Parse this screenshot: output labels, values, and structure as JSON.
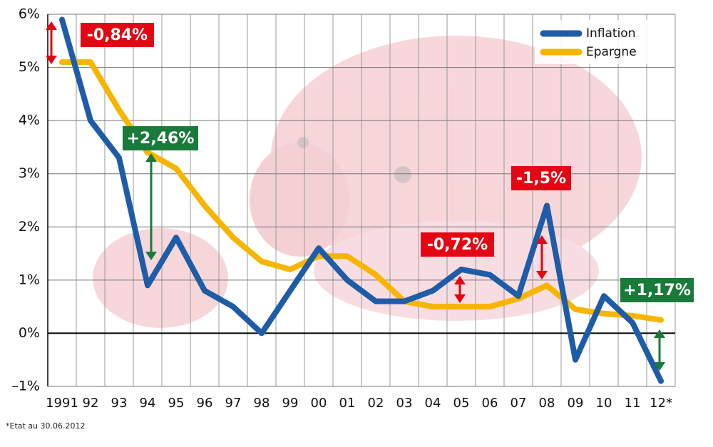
{
  "chart_data": {
    "type": "line",
    "categories": [
      "1991",
      "92",
      "93",
      "94",
      "95",
      "96",
      "97",
      "98",
      "99",
      "00",
      "01",
      "02",
      "03",
      "04",
      "05",
      "06",
      "07",
      "08",
      "09",
      "10",
      "11",
      "12*"
    ],
    "series": [
      {
        "name": "Inflation",
        "color": "#1f5ca8",
        "values": [
          5.9,
          4.0,
          3.3,
          0.9,
          1.8,
          0.8,
          0.5,
          0.0,
          0.8,
          1.6,
          1.0,
          0.6,
          0.6,
          0.8,
          1.2,
          1.1,
          0.7,
          2.4,
          -0.5,
          0.7,
          0.2,
          -0.9
        ]
      },
      {
        "name": "Epargne",
        "color": "#f7b500",
        "values": [
          5.1,
          5.1,
          4.2,
          3.4,
          3.1,
          2.4,
          1.8,
          1.35,
          1.2,
          1.45,
          1.45,
          1.1,
          0.6,
          0.5,
          0.5,
          0.5,
          0.65,
          0.9,
          0.45,
          0.37,
          0.33,
          0.25
        ]
      }
    ],
    "ylim": [
      -1,
      6
    ],
    "yticks": [
      {
        "value": 6,
        "label": "6%"
      },
      {
        "value": 5,
        "label": "5%"
      },
      {
        "value": 4,
        "label": "4%"
      },
      {
        "value": 3,
        "label": "3%"
      },
      {
        "value": 2,
        "label": "2%"
      },
      {
        "value": 1,
        "label": "1%"
      },
      {
        "value": 0,
        "label": "0%"
      },
      {
        "value": -1,
        "label": "–1%"
      }
    ],
    "grid": true,
    "legend": "top-right",
    "annotations": [
      {
        "text": "-0,84%",
        "color": "#e30613"
      },
      {
        "text": "+2,46%",
        "color": "#1a7a3a"
      },
      {
        "text": "-0,72%",
        "color": "#e30613"
      },
      {
        "text": "-1,5%",
        "color": "#e30613"
      },
      {
        "text": "+1,17%",
        "color": "#1a7a3a"
      }
    ],
    "footnote": "*Etat au 30.06.2012"
  }
}
